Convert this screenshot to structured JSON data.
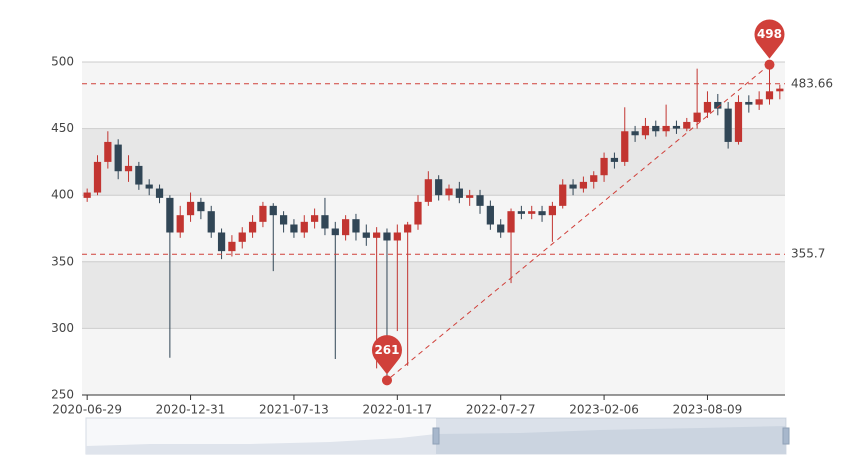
{
  "chart_data": {
    "type": "candlestick",
    "categories": [
      "2020-06-29",
      null,
      null,
      null,
      null,
      null,
      null,
      null,
      null,
      null,
      "2020-12-31",
      null,
      null,
      null,
      null,
      null,
      null,
      null,
      null,
      null,
      "2021-07-13",
      null,
      null,
      null,
      null,
      null,
      null,
      null,
      null,
      null,
      "2022-01-17",
      null,
      null,
      null,
      null,
      null,
      null,
      null,
      null,
      null,
      "2022-07-27",
      null,
      null,
      null,
      null,
      null,
      null,
      null,
      null,
      null,
      "2023-02-06",
      null,
      null,
      null,
      null,
      null,
      null,
      null,
      null,
      null,
      "2023-08-09",
      null,
      null,
      null,
      null,
      null,
      null,
      null
    ],
    "values": [
      [
        398,
        402,
        395,
        405
      ],
      [
        402,
        425,
        400,
        430
      ],
      [
        425,
        440,
        420,
        448
      ],
      [
        438,
        418,
        412,
        442
      ],
      [
        418,
        422,
        410,
        430
      ],
      [
        422,
        408,
        404,
        425
      ],
      [
        408,
        405,
        400,
        412
      ],
      [
        405,
        398,
        394,
        408
      ],
      [
        398,
        372,
        278,
        400
      ],
      [
        372,
        385,
        368,
        392
      ],
      [
        385,
        395,
        380,
        402
      ],
      [
        395,
        388,
        382,
        398
      ],
      [
        388,
        372,
        368,
        392
      ],
      [
        372,
        358,
        352,
        375
      ],
      [
        358,
        365,
        354,
        370
      ],
      [
        365,
        372,
        360,
        376
      ],
      [
        372,
        380,
        368,
        385
      ],
      [
        380,
        392,
        376,
        395
      ],
      [
        392,
        385,
        343,
        394
      ],
      [
        385,
        378,
        372,
        388
      ],
      [
        378,
        372,
        368,
        382
      ],
      [
        372,
        380,
        368,
        385
      ],
      [
        380,
        385,
        375,
        390
      ],
      [
        385,
        375,
        370,
        398
      ],
      [
        375,
        370,
        277,
        380
      ],
      [
        370,
        382,
        366,
        385
      ],
      [
        382,
        372,
        366,
        386
      ],
      [
        372,
        368,
        362,
        378
      ],
      [
        368,
        372,
        270,
        376
      ],
      [
        372,
        366,
        261,
        375
      ],
      [
        366,
        372,
        298,
        378
      ],
      [
        372,
        378,
        272,
        380
      ],
      [
        378,
        395,
        374,
        400
      ],
      [
        395,
        412,
        392,
        418
      ],
      [
        412,
        400,
        396,
        415
      ],
      [
        400,
        405,
        396,
        408
      ],
      [
        405,
        398,
        394,
        410
      ],
      [
        398,
        400,
        392,
        404
      ],
      [
        400,
        392,
        386,
        404
      ],
      [
        392,
        378,
        374,
        396
      ],
      [
        378,
        372,
        368,
        382
      ],
      [
        372,
        388,
        334,
        390
      ],
      [
        388,
        386,
        382,
        392
      ],
      [
        386,
        388,
        382,
        392
      ],
      [
        388,
        385,
        380,
        392
      ],
      [
        385,
        392,
        365,
        395
      ],
      [
        392,
        408,
        390,
        412
      ],
      [
        408,
        405,
        400,
        412
      ],
      [
        405,
        410,
        402,
        414
      ],
      [
        410,
        415,
        405,
        418
      ],
      [
        415,
        428,
        410,
        432
      ],
      [
        428,
        425,
        420,
        432
      ],
      [
        425,
        448,
        422,
        466
      ],
      [
        448,
        445,
        440,
        452
      ],
      [
        445,
        452,
        442,
        458
      ],
      [
        452,
        448,
        444,
        456
      ],
      [
        448,
        452,
        444,
        468
      ],
      [
        452,
        450,
        446,
        456
      ],
      [
        450,
        455,
        448,
        458
      ],
      [
        455,
        462,
        450,
        495
      ],
      [
        462,
        470,
        458,
        478
      ],
      [
        470,
        465,
        460,
        476
      ],
      [
        465,
        440,
        435,
        470
      ],
      [
        440,
        470,
        438,
        475
      ],
      [
        470,
        468,
        462,
        475
      ],
      [
        468,
        472,
        464,
        478
      ],
      [
        472,
        478,
        468,
        498
      ],
      [
        478,
        480,
        472,
        483
      ]
    ],
    "up_color": "#c23531",
    "down_color": "#314656",
    "ylim": [
      250,
      500
    ],
    "yticks": [
      250,
      300,
      350,
      400,
      450,
      500
    ],
    "mark_points": [
      {
        "type": "max",
        "value": 498
      },
      {
        "type": "min",
        "value": 261
      }
    ],
    "mark_lines": [
      {
        "value": 483.66
      },
      {
        "value": 355.7
      }
    ],
    "mark_color": "#d0403a"
  }
}
